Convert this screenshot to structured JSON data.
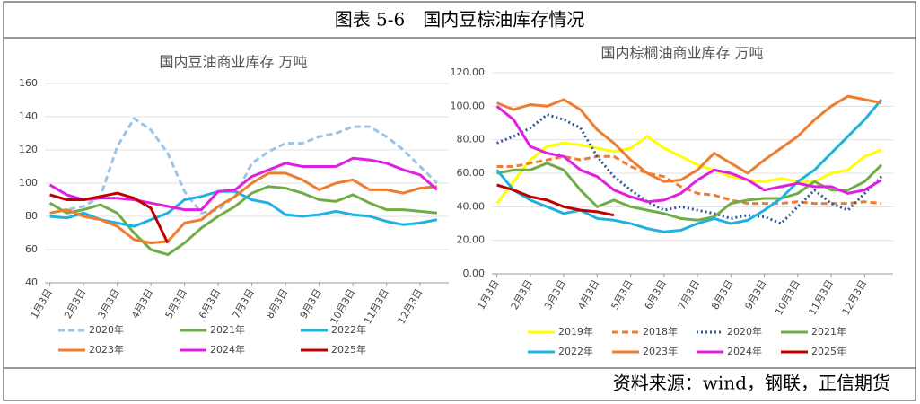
{
  "header": {
    "title": "图表 5-6　国内豆棕油库存情况"
  },
  "source": "资料来源：wind，钢联，正信期货",
  "chart_data": [
    {
      "type": "line",
      "title": "国内豆油商业库存  万吨",
      "categories": [
        "1月3日",
        null,
        "2月3日",
        null,
        "3月3日",
        null,
        "4月3日",
        null,
        "5月3日",
        null,
        "6月3日",
        null,
        "7月3日",
        null,
        "8月3日",
        null,
        "9月3日",
        null,
        "10月3日",
        null,
        "11月3日",
        null,
        "12月3日",
        null
      ],
      "ylim": [
        40,
        160
      ],
      "yticks": [
        40,
        60,
        80,
        100,
        120,
        140,
        160
      ],
      "grid": true,
      "series": [
        {
          "name": "2020年",
          "color": "#9dc3e6",
          "line_style": "dashed",
          "values": [
            82,
            84,
            86,
            92,
            122,
            139,
            132,
            118,
            95,
            82,
            84,
            92,
            112,
            119,
            124,
            124,
            128,
            130,
            134,
            134,
            128,
            120,
            110,
            100
          ]
        },
        {
          "name": "2021年",
          "color": "#70ad47",
          "values": [
            88,
            82,
            84,
            87,
            82,
            70,
            60,
            57,
            64,
            73,
            80,
            86,
            94,
            98,
            97,
            94,
            90,
            89,
            93,
            88,
            84,
            84,
            83,
            82
          ]
        },
        {
          "name": "2022年",
          "color": "#1fb2e0",
          "values": [
            80,
            79,
            82,
            78,
            76,
            74,
            78,
            82,
            90,
            92,
            95,
            95,
            90,
            88,
            81,
            80,
            81,
            83,
            81,
            80,
            77,
            75,
            76,
            78
          ]
        },
        {
          "name": "2023年",
          "color": "#ed7d31",
          "values": [
            82,
            84,
            80,
            78,
            74,
            66,
            64,
            65,
            76,
            78,
            86,
            92,
            100,
            106,
            106,
            102,
            96,
            100,
            102,
            96,
            96,
            94,
            97,
            98
          ]
        },
        {
          "name": "2024年",
          "color": "#e020e0",
          "values": [
            99,
            93,
            90,
            91,
            91,
            90,
            88,
            86,
            84,
            84,
            95,
            96,
            104,
            108,
            112,
            110,
            110,
            110,
            115,
            114,
            112,
            108,
            105,
            96
          ]
        },
        {
          "name": "2025年",
          "color": "#c00000",
          "values": [
            93,
            90,
            90,
            92,
            94,
            91,
            85,
            64,
            null,
            null,
            null,
            null,
            null,
            null,
            null,
            null,
            null,
            null,
            null,
            null,
            null,
            null,
            null,
            null
          ]
        }
      ]
    },
    {
      "type": "line",
      "title": "国内棕榈油商业库存  万吨",
      "categories": [
        "1月3日",
        null,
        "2月3日",
        null,
        "3月3日",
        null,
        "4月3日",
        null,
        "5月3日",
        null,
        "6月3日",
        null,
        "7月3日",
        null,
        "8月3日",
        null,
        "9月3日",
        null,
        "10月3日",
        null,
        "11月3日",
        null,
        "12月3日",
        null
      ],
      "ylim": [
        0,
        120
      ],
      "yticks": [
        {
          "value": 0,
          "label": "0.00"
        },
        {
          "value": 20,
          "label": "20.00"
        },
        {
          "value": 40,
          "label": "40.00"
        },
        {
          "value": 60,
          "label": "60.00"
        },
        {
          "value": 80,
          "label": "80.00"
        },
        {
          "value": 100,
          "label": "100.00"
        },
        {
          "value": 120,
          "label": "120.00"
        }
      ],
      "grid": true,
      "series": [
        {
          "name": "2019年",
          "color": "#ffff00",
          "values": [
            42,
            55,
            68,
            76,
            78,
            77,
            75,
            73,
            75,
            82,
            75,
            70,
            65,
            62,
            58,
            56,
            55,
            57,
            55,
            55,
            60,
            62,
            70,
            74
          ]
        },
        {
          "name": "2018年",
          "color": "#ed7d31",
          "line_style": "dashed",
          "values": [
            64,
            64,
            66,
            68,
            70,
            68,
            70,
            70,
            64,
            60,
            58,
            52,
            48,
            47,
            44,
            42,
            42,
            42,
            43,
            42,
            42,
            42,
            43,
            42
          ]
        },
        {
          "name": "2020年",
          "color": "#2f5597",
          "line_style": "dotted",
          "values": [
            78,
            82,
            87,
            95,
            92,
            87,
            70,
            58,
            50,
            43,
            38,
            40,
            38,
            36,
            33,
            35,
            34,
            30,
            40,
            50,
            42,
            38,
            48,
            58
          ]
        },
        {
          "name": "2021年",
          "color": "#70ad47",
          "values": [
            60,
            62,
            62,
            66,
            62,
            50,
            40,
            44,
            40,
            38,
            36,
            33,
            32,
            34,
            42,
            44,
            45,
            45,
            48,
            55,
            50,
            50,
            55,
            65
          ]
        },
        {
          "name": "2022年",
          "color": "#1fb2e0",
          "values": [
            62,
            50,
            44,
            40,
            36,
            38,
            33,
            32,
            30,
            27,
            25,
            26,
            30,
            33,
            30,
            32,
            38,
            45,
            55,
            62,
            72,
            82,
            92,
            104
          ]
        },
        {
          "name": "2023年",
          "color": "#ed7d31",
          "values": [
            102,
            98,
            101,
            100,
            104,
            98,
            86,
            78,
            68,
            60,
            55,
            56,
            62,
            72,
            66,
            60,
            68,
            75,
            82,
            92,
            100,
            106,
            104,
            102
          ]
        },
        {
          "name": "2024年",
          "color": "#e020e0",
          "values": [
            100,
            92,
            76,
            72,
            70,
            62,
            58,
            50,
            46,
            43,
            44,
            48,
            56,
            62,
            60,
            56,
            50,
            52,
            54,
            52,
            52,
            48,
            50,
            56
          ]
        },
        {
          "name": "2025年",
          "color": "#c00000",
          "values": [
            53,
            50,
            46,
            44,
            40,
            38,
            37,
            35,
            null,
            null,
            null,
            null,
            null,
            null,
            null,
            null,
            null,
            null,
            null,
            null,
            null,
            null,
            null,
            null
          ]
        }
      ]
    }
  ]
}
